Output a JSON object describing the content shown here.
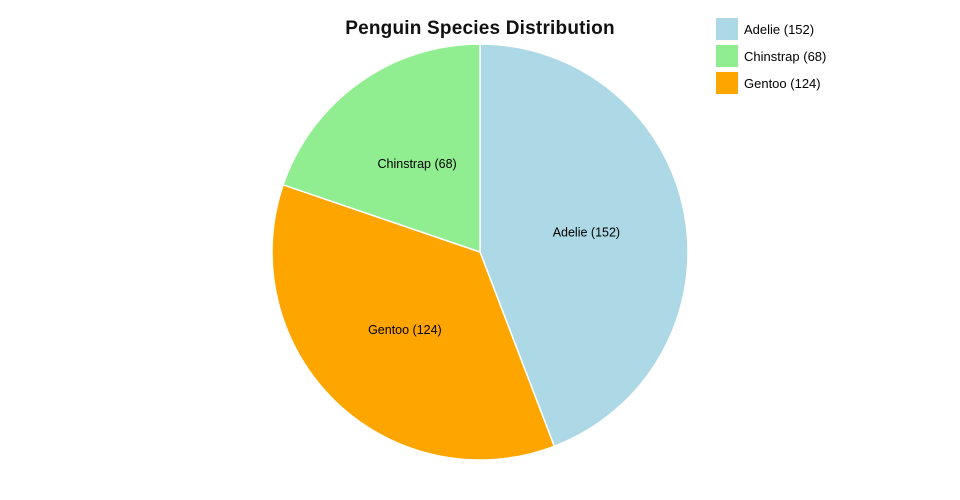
{
  "chart_data": {
    "type": "pie",
    "title": "Penguin Species Distribution",
    "slices": [
      {
        "label": "Adelie",
        "value": 152,
        "display": "Adelie (152)",
        "color": "#ADD8E6"
      },
      {
        "label": "Chinstrap",
        "value": 68,
        "display": "Chinstrap (68)",
        "color": "#90EE90"
      },
      {
        "label": "Gentoo",
        "value": 124,
        "display": "Gentoo (124)",
        "color": "#FFA500"
      }
    ],
    "layout": {
      "legend_position": "top-right",
      "start_angle_deg": 0,
      "direction": "clockwise",
      "sort": "descending",
      "slice_border_color": "#ffffff",
      "background": "#ffffff"
    }
  }
}
